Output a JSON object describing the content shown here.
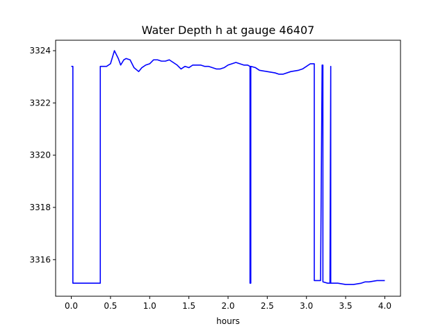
{
  "chart_data": {
    "type": "line",
    "title": "Water Depth h at gauge 46407",
    "xlabel": "hours",
    "ylabel": "",
    "xlim": [
      -0.2,
      4.2
    ],
    "ylim": [
      3314.6,
      3324.4
    ],
    "grid": false,
    "xticks": [
      0.0,
      0.5,
      1.0,
      1.5,
      2.0,
      2.5,
      3.0,
      3.5,
      4.0
    ],
    "xtick_labels": [
      "0.0",
      "0.5",
      "1.0",
      "1.5",
      "2.0",
      "2.5",
      "3.0",
      "3.5",
      "4.0"
    ],
    "yticks": [
      3316,
      3318,
      3320,
      3322,
      3324
    ],
    "ytick_labels": [
      "3316",
      "3318",
      "3320",
      "3322",
      "3324"
    ],
    "series": [
      {
        "color": "#0000ff",
        "x": [
          0.0,
          0.02,
          0.02,
          0.1,
          0.2,
          0.3,
          0.37,
          0.37,
          0.45,
          0.5,
          0.55,
          0.6,
          0.63,
          0.67,
          0.7,
          0.75,
          0.8,
          0.86,
          0.9,
          0.95,
          1.0,
          1.05,
          1.1,
          1.15,
          1.2,
          1.25,
          1.3,
          1.35,
          1.4,
          1.45,
          1.5,
          1.55,
          1.6,
          1.65,
          1.7,
          1.75,
          1.8,
          1.85,
          1.9,
          1.95,
          2.0,
          2.05,
          2.1,
          2.15,
          2.2,
          2.25,
          2.28,
          2.28,
          2.29,
          2.29,
          2.35,
          2.4,
          2.5,
          2.6,
          2.65,
          2.7,
          2.8,
          2.9,
          2.95,
          3.0,
          3.05,
          3.1,
          3.1,
          3.18,
          3.2,
          3.21,
          3.21,
          3.27,
          3.3,
          3.31,
          3.31,
          3.33,
          3.4,
          3.5,
          3.6,
          3.7,
          3.75,
          3.8,
          3.9,
          4.0
        ],
        "y": [
          3323.4,
          3323.4,
          3315.1,
          3315.1,
          3315.1,
          3315.1,
          3315.1,
          3323.4,
          3323.4,
          3323.5,
          3324.0,
          3323.7,
          3323.45,
          3323.65,
          3323.7,
          3323.65,
          3323.35,
          3323.2,
          3323.35,
          3323.45,
          3323.5,
          3323.65,
          3323.65,
          3323.6,
          3323.6,
          3323.65,
          3323.55,
          3323.45,
          3323.3,
          3323.4,
          3323.35,
          3323.45,
          3323.45,
          3323.45,
          3323.4,
          3323.4,
          3323.35,
          3323.3,
          3323.3,
          3323.35,
          3323.45,
          3323.5,
          3323.55,
          3323.5,
          3323.45,
          3323.45,
          3323.4,
          3315.1,
          3315.1,
          3323.4,
          3323.35,
          3323.25,
          3323.2,
          3323.15,
          3323.1,
          3323.1,
          3323.2,
          3323.25,
          3323.3,
          3323.4,
          3323.5,
          3323.5,
          3315.2,
          3315.2,
          3323.45,
          3323.45,
          3315.15,
          3315.1,
          3315.1,
          3323.4,
          3315.1,
          3315.1,
          3315.1,
          3315.05,
          3315.05,
          3315.1,
          3315.15,
          3315.15,
          3315.2,
          3315.2
        ]
      }
    ]
  }
}
